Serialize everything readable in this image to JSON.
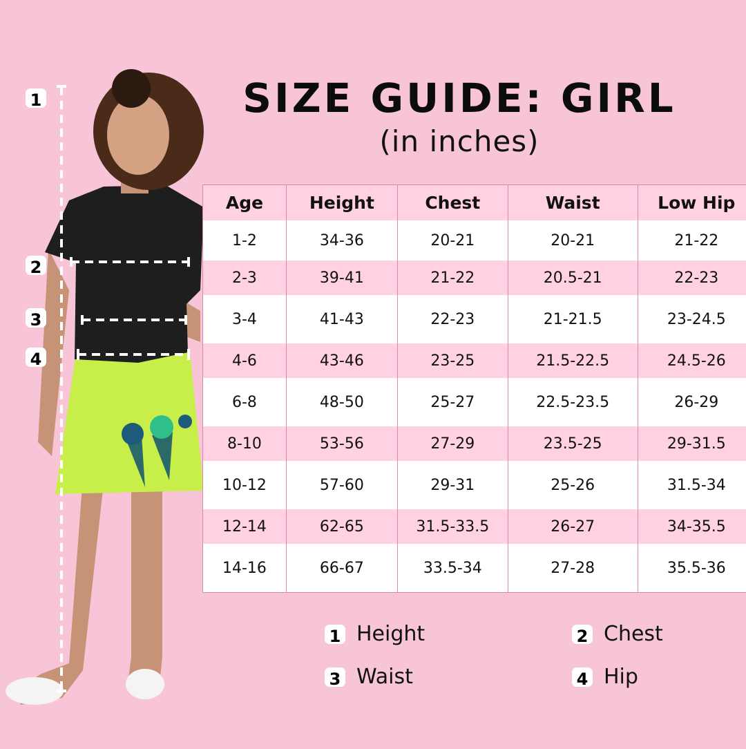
{
  "header": {
    "title": "SIZE GUIDE: GIRL",
    "subtitle": "(in inches)"
  },
  "table": {
    "columns": [
      "Age",
      "Height",
      "Chest",
      "Waist",
      "Low Hip"
    ],
    "rows": [
      [
        "1-2",
        "34-36",
        "20-21",
        "20-21",
        "21-22"
      ],
      [
        "2-3",
        "39-41",
        "21-22",
        "20.5-21",
        "22-23"
      ],
      [
        "3-4",
        "41-43",
        "22-23",
        "21-21.5",
        "23-24.5"
      ],
      [
        "4-6",
        "43-46",
        "23-25",
        "21.5-22.5",
        "24.5-26"
      ],
      [
        "6-8",
        "48-50",
        "25-27",
        "22.5-23.5",
        "26-29"
      ],
      [
        "8-10",
        "53-56",
        "27-29",
        "23.5-25",
        "29-31.5"
      ],
      [
        "10-12",
        "57-60",
        "29-31",
        "25-26",
        "31.5-34"
      ],
      [
        "12-14",
        "62-65",
        "31.5-33.5",
        "26-27",
        "34-35.5"
      ],
      [
        "14-16",
        "66-67",
        "33.5-34",
        "27-28",
        "35.5-36"
      ]
    ]
  },
  "markers": [
    "1",
    "2",
    "3",
    "4"
  ],
  "legend": [
    {
      "num": "1",
      "label": "Height"
    },
    {
      "num": "2",
      "label": "Chest"
    },
    {
      "num": "3",
      "label": "Waist"
    },
    {
      "num": "4",
      "label": "Hip"
    }
  ],
  "colors": {
    "background": "#f8c4d7",
    "row_pink": "#ffd1e2",
    "border": "#d98aa8",
    "shirt": "#1e1e1e",
    "skirt": "#c8ee4a"
  }
}
